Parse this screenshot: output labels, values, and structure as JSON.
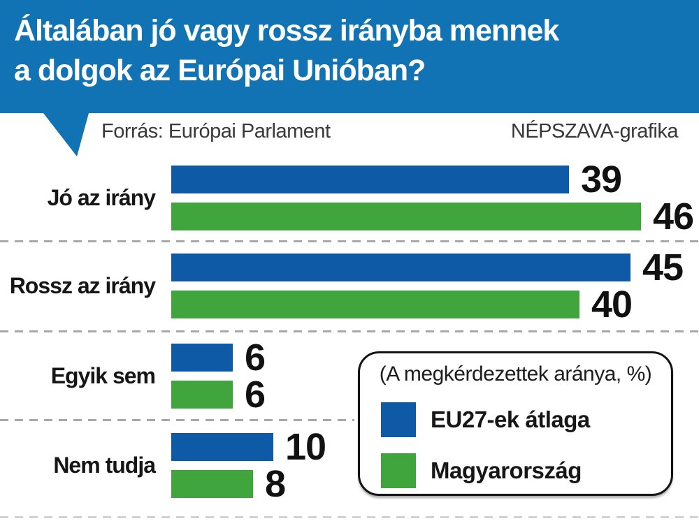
{
  "header": {
    "title_line1": "Általában jó vagy rossz irányba mennek",
    "title_line2": "a dolgok az Európai Unióban?"
  },
  "meta": {
    "source": "Forrás: Európai Parlament",
    "credit": "NÉPSZAVA-grafika"
  },
  "legend": {
    "note": "(A megkérdezettek aránya, %)",
    "items": [
      {
        "label": "EU27-ek átlaga",
        "color": "#0e5aa6"
      },
      {
        "label": "Magyarország",
        "color": "#40a53c"
      }
    ]
  },
  "chart_data": {
    "type": "bar",
    "orientation": "horizontal",
    "title": "Általában jó vagy rossz irányba mennek a dolgok az Európai Unióban?",
    "note": "(A megkérdezettek aránya, %)",
    "categories": [
      "Jó az irány",
      "Rossz az irány",
      "Egyik sem",
      "Nem tudja"
    ],
    "series": [
      {
        "name": "EU27-ek átlaga",
        "color": "#0e5aa6",
        "values": [
          39,
          45,
          6,
          10
        ]
      },
      {
        "name": "Magyarország",
        "color": "#40a53c",
        "values": [
          46,
          40,
          6,
          8
        ]
      }
    ],
    "value_unit": "%",
    "xlim": [
      0,
      50
    ],
    "grid": false,
    "legend_position": "bottom-right"
  },
  "colors": {
    "header_bg": "#1173b4",
    "eu_blue": "#0e5aa6",
    "hu_green": "#40a53c",
    "separator": "#a8a8a8"
  }
}
